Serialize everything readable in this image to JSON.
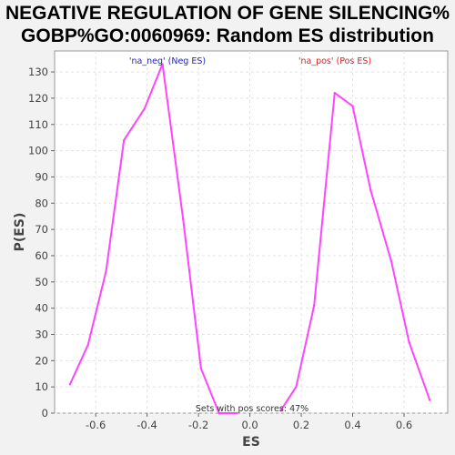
{
  "chart_data": {
    "type": "line",
    "title_line1": "NEGATIVE REGULATION OF GENE SILENCING%",
    "title_line2": "GOBP%GO:0060969: Random ES distribution",
    "xlabel": "ES",
    "ylabel": "P(ES)",
    "xlim": [
      -0.76,
      0.77
    ],
    "ylim": [
      0,
      138
    ],
    "xticks": [
      -0.6,
      -0.4,
      -0.2,
      0.0,
      0.2,
      0.4,
      0.6
    ],
    "xtick_labels": [
      "-0.6",
      "-0.4",
      "-0.2",
      "0.0",
      "0.2",
      "0.4",
      "0.6"
    ],
    "yticks": [
      0,
      10,
      20,
      30,
      40,
      50,
      60,
      70,
      80,
      90,
      100,
      110,
      120,
      130
    ],
    "ytick_labels": [
      "0",
      "10",
      "20",
      "30",
      "40",
      "50",
      "60",
      "70",
      "80",
      "90",
      "100",
      "110",
      "120",
      "130"
    ],
    "grid": true,
    "line_color": "#ff44ff",
    "series": [
      {
        "name": "'na_neg' (Neg ES)",
        "legend_color": "#2222cc",
        "x": [
          -0.7,
          -0.63,
          -0.56,
          -0.49,
          -0.41,
          -0.34,
          -0.26,
          -0.19,
          -0.12,
          -0.05
        ],
        "y": [
          11,
          26,
          54,
          104,
          116,
          133,
          74,
          17,
          0,
          0
        ]
      },
      {
        "name": "'na_pos' (Pos ES)",
        "legend_color": "#dd2222",
        "x": [
          0.12,
          0.18,
          0.25,
          0.33,
          0.4,
          0.47,
          0.55,
          0.62,
          0.7
        ],
        "y": [
          1,
          10,
          41,
          122,
          117,
          85,
          58,
          27,
          5
        ]
      }
    ],
    "annotation": "Sets with pos scores: 47%"
  }
}
